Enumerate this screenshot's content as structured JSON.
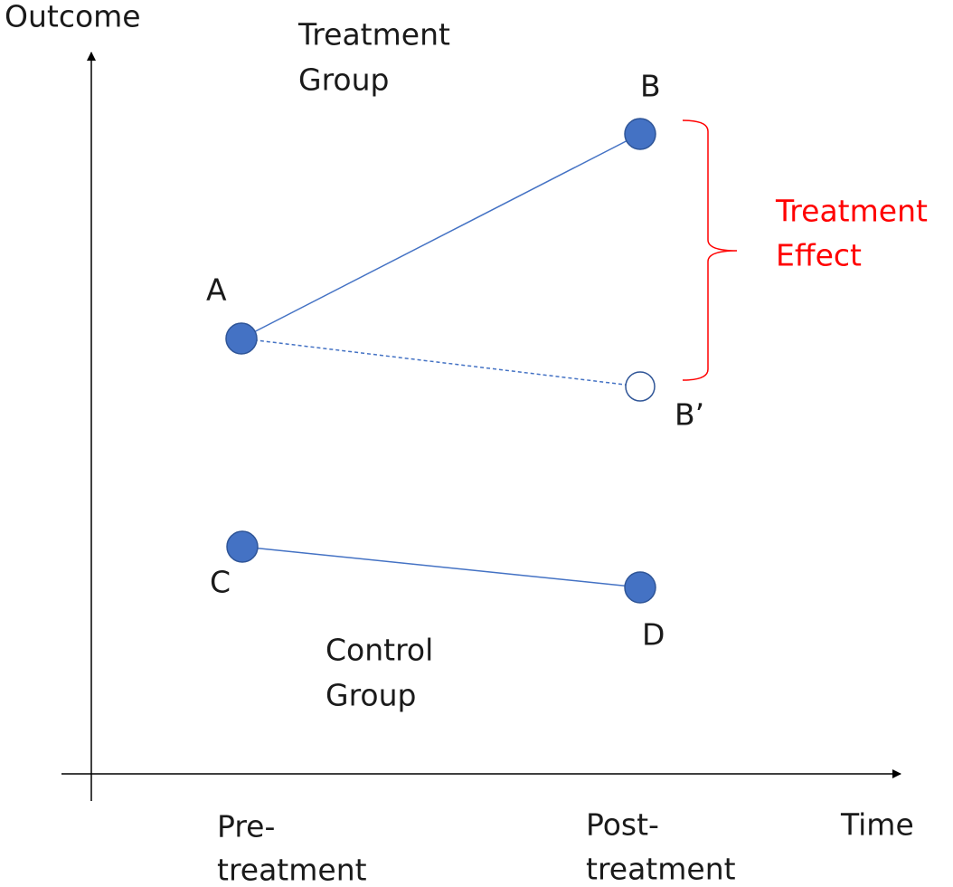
{
  "axis_labels": {
    "y": "Outcome",
    "x": "Time"
  },
  "group_labels": {
    "treatment": [
      "Treatment",
      "Group"
    ],
    "control": [
      "Control",
      "Group"
    ]
  },
  "points": {
    "a": "A",
    "b": "B",
    "b_prime": "B’",
    "c": "C",
    "d": "D"
  },
  "effect_label": [
    "Treatment",
    "Effect"
  ],
  "time_labels": {
    "pre": [
      "Pre-",
      "treatment"
    ],
    "post": [
      "Post-",
      "treatment"
    ]
  }
}
